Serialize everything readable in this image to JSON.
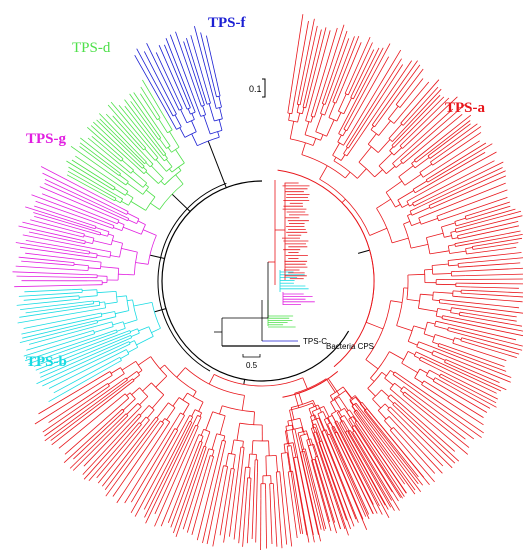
{
  "figure": {
    "clades": [
      {
        "id": "tps-a",
        "label": "TPS-a",
        "color": "#e8161b"
      },
      {
        "id": "tps-b",
        "label": "TPS-b",
        "color": "#19dbe3"
      },
      {
        "id": "tps-d",
        "label": "TPS-d",
        "color": "#4ee04a"
      },
      {
        "id": "tps-f",
        "label": "TPS-f",
        "color": "#1b1fd3"
      },
      {
        "id": "tps-g",
        "label": "TPS-g",
        "color": "#e11ee0"
      }
    ],
    "main_scale": "0.1",
    "inset": {
      "scale": "0.5",
      "tps_c_label": "TPS-C",
      "outgroup_label": "Bacteria CPS"
    }
  }
}
